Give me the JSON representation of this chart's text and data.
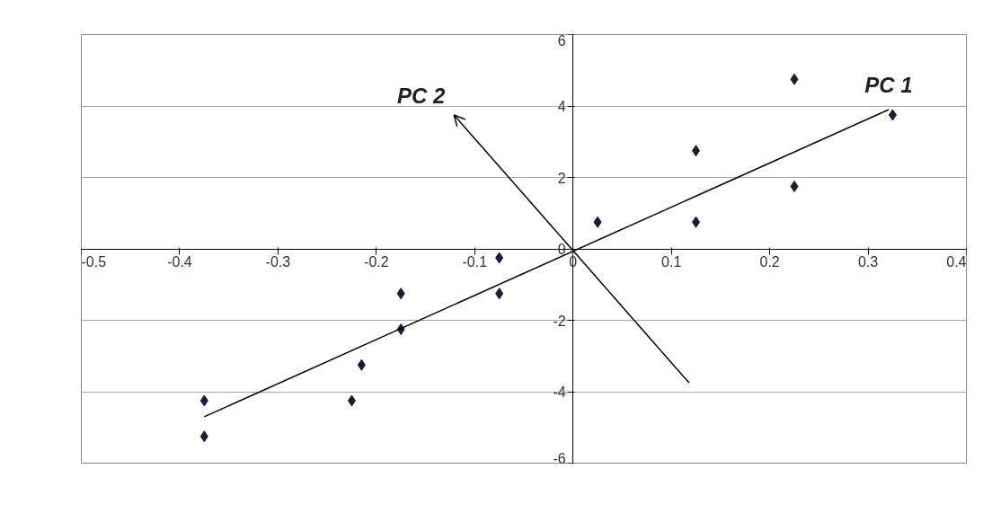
{
  "chart_data": {
    "type": "scatter",
    "marker": "diamond",
    "grid": "y",
    "xlim": [
      -0.5,
      0.4
    ],
    "xticks": [
      -0.5,
      -0.4,
      -0.3,
      -0.2,
      -0.1,
      0,
      0.1,
      0.2,
      0.3,
      0.4
    ],
    "ylim": [
      -6,
      6
    ],
    "yticks": [
      -6,
      -4,
      -2,
      0,
      2,
      4,
      6
    ],
    "x": [
      -0.375,
      -0.375,
      -0.225,
      -0.215,
      -0.175,
      -0.175,
      -0.075,
      -0.075,
      0.025,
      0.125,
      0.125,
      0.225,
      0.225,
      0.325
    ],
    "series": [
      {
        "color": "#1c1c30",
        "values": [
          -4.25,
          -5.25,
          -4.25,
          -3.25,
          -2.25,
          -1.25,
          -0.25,
          -1.25,
          0.75,
          0.75,
          2.75,
          1.75,
          4.75,
          3.75
        ]
      },
      {
        "type": "line",
        "marker": "none",
        "name": "PC 1",
        "color": "#000000",
        "x": [
          -0.375,
          0.321
        ],
        "values": [
          -4.7,
          3.9
        ]
      },
      {
        "type": "line",
        "marker": "none",
        "name": "PC 2",
        "color": "#000000",
        "x": [
          0.118,
          -0.121
        ],
        "values": [
          -3.75,
          3.75
        ]
      }
    ]
  }
}
